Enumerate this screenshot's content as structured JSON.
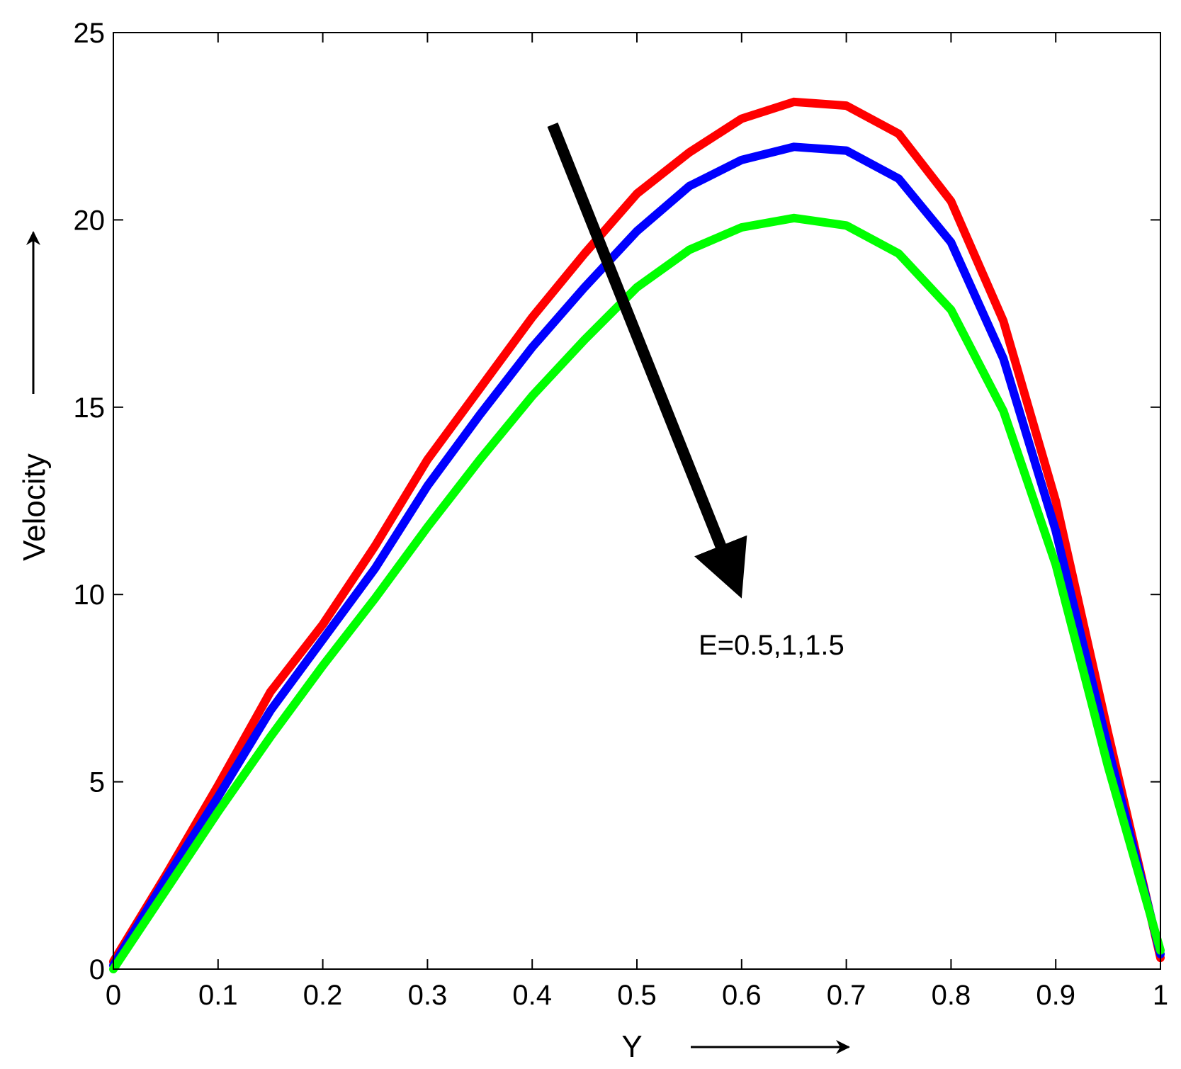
{
  "chart_data": {
    "type": "line",
    "xlabel": "Y",
    "ylabel": "Velocity",
    "xlim": [
      0,
      1
    ],
    "ylim": [
      0,
      25
    ],
    "xticks": [
      "0",
      "0.1",
      "0.2",
      "0.3",
      "0.4",
      "0.5",
      "0.6",
      "0.7",
      "0.8",
      "0.9",
      "1"
    ],
    "yticks": [
      "0",
      "5",
      "10",
      "15",
      "20",
      "25"
    ],
    "grid": false,
    "legend": "none",
    "annotation": "E=0.5,1,1.5",
    "x": [
      0,
      0.05,
      0.1,
      0.15,
      0.2,
      0.25,
      0.3,
      0.35,
      0.4,
      0.45,
      0.5,
      0.55,
      0.6,
      0.65,
      0.7,
      0.75,
      0.8,
      0.85,
      0.9,
      0.95,
      1.0
    ],
    "series": [
      {
        "color": "#ff0000",
        "values": [
          0.2,
          2.5,
          4.9,
          7.4,
          9.2,
          11.3,
          13.6,
          15.5,
          17.4,
          19.1,
          20.7,
          21.8,
          22.7,
          23.15,
          23.05,
          22.3,
          20.5,
          17.3,
          12.5,
          6.3,
          0.3
        ]
      },
      {
        "color": "#0000ff",
        "values": [
          0.1,
          2.4,
          4.6,
          6.9,
          8.8,
          10.7,
          12.9,
          14.8,
          16.6,
          18.2,
          19.7,
          20.9,
          21.6,
          21.95,
          21.85,
          21.1,
          19.4,
          16.3,
          11.7,
          5.9,
          0.4
        ]
      },
      {
        "color": "#00ff00",
        "values": [
          0.0,
          2.1,
          4.2,
          6.2,
          8.1,
          9.9,
          11.8,
          13.6,
          15.3,
          16.8,
          18.2,
          19.2,
          19.8,
          20.05,
          19.85,
          19.1,
          17.6,
          14.9,
          10.8,
          5.4,
          0.5
        ]
      }
    ]
  }
}
